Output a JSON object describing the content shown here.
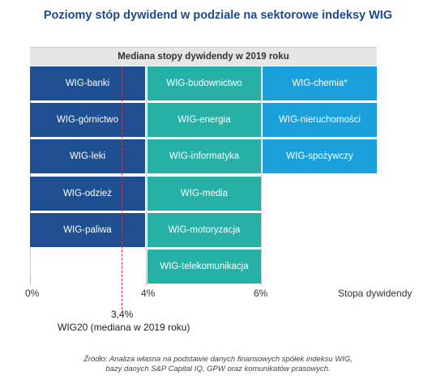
{
  "title": "Poziomy stóp dywidend w podziale na sektorowe indeksy WIG",
  "band_label": "Mediana stopy dywidendy w 2019 roku",
  "colors": {
    "col_low": "#1d4f91",
    "col_mid": "#27b0a6",
    "col_high": "#1aa1dc",
    "median_line": "#d6285a"
  },
  "chart_data": {
    "type": "table",
    "x_axis": {
      "label": "Stopa dywidendy",
      "ticks": [
        "0%",
        "4%",
        "6%"
      ],
      "range_pct": [
        0,
        6
      ]
    },
    "columns": [
      {
        "range": "0%–4%",
        "items": [
          "WIG-banki",
          "WIG-górnictwo",
          "WIG-leki",
          "WIG-odzież",
          "WIG-paliwa"
        ]
      },
      {
        "range": "4%–6%",
        "items": [
          "WIG-budownictwo",
          "WIG-energia",
          "WIG-informatyka",
          "WIG-media",
          "WIG-motoryzacja",
          "WIG-telekomunikacja"
        ]
      },
      {
        "range": ">6%",
        "items": [
          "WIG-chemia*",
          "WIG-nieruchomości",
          "WIG-spożywczy"
        ]
      }
    ],
    "reference_line": {
      "value_pct": 3.4,
      "value_label": "3,4%",
      "label": "WIG20 (mediana w 2019 roku)"
    }
  },
  "source": [
    "Źródło: Analiza własna na podstawie danych finansowych spółek indeksu WIG,",
    "bazy danych S&P Capital IQ, GPW oraz komunikatów prasowych."
  ]
}
